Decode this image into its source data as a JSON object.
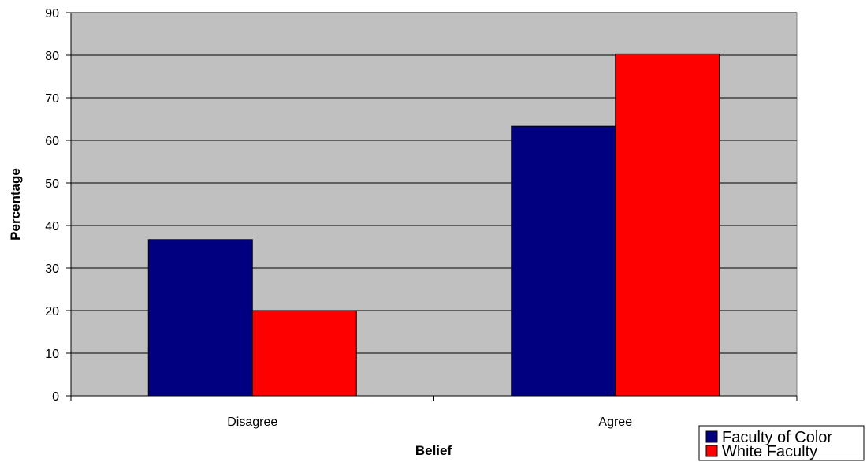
{
  "chart_data": {
    "type": "bar",
    "categories": [
      "Disagree",
      "Agree"
    ],
    "series": [
      {
        "name": "Faculty of Color",
        "values": [
          36.7,
          63.3
        ],
        "color": "#000080"
      },
      {
        "name": "White Faculty",
        "values": [
          20,
          80.3
        ],
        "color": "#ff0000"
      }
    ],
    "xlabel": "Belief",
    "ylabel": "Percentage",
    "ylim": [
      0,
      90
    ],
    "yticks": [
      0,
      10,
      20,
      30,
      40,
      50,
      60,
      70,
      80,
      90
    ],
    "grid": true,
    "plot_background": "#c0c0c0",
    "legend_position": "bottom-right"
  }
}
